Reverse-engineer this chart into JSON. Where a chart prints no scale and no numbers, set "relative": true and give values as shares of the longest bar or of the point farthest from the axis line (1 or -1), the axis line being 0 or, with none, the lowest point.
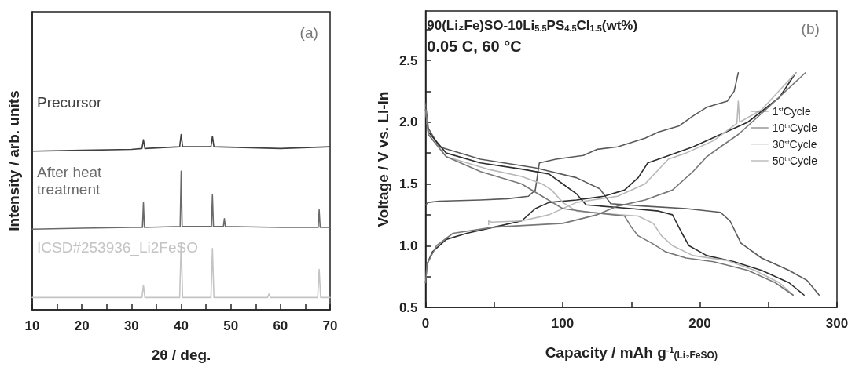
{
  "chart_data": [
    {
      "type": "line",
      "relative": true,
      "xlabel": "2θ / deg.",
      "ylabel": "Intensity / arb. units",
      "annotations": [
        "(a)"
      ],
      "xlim": [
        10,
        70
      ],
      "xticks": [
        10,
        {
          "value": 15,
          "label": null
        },
        20,
        {
          "value": 25,
          "label": null
        },
        30,
        {
          "value": 35,
          "label": null
        },
        40,
        {
          "value": 45,
          "label": null
        },
        50,
        {
          "value": 55,
          "label": null
        },
        60,
        {
          "value": 65,
          "label": null
        },
        70
      ],
      "tick_labels": "x",
      "grid": false,
      "legend": false,
      "marker": "none",
      "series": [
        {
          "name": "Precursor",
          "color": "#404040",
          "x": [
            10,
            20,
            30,
            32.1,
            32.4,
            32.7,
            39.7,
            40,
            40.3,
            46,
            46.3,
            46.6,
            60,
            70
          ],
          "values": [
            0.905,
            0.91,
            0.915,
            0.92,
            0.97,
            0.92,
            0.93,
            1.0,
            0.93,
            0.93,
            0.99,
            0.93,
            0.92,
            0.93
          ]
        },
        {
          "name": "After heat treatment",
          "color": "#6a6a6a",
          "x": [
            10,
            20,
            30,
            32.2,
            32.4,
            32.6,
            39.8,
            40,
            40.2,
            46.1,
            46.3,
            46.5,
            48.5,
            48.7,
            48.9,
            60,
            67.6,
            67.8,
            68,
            70
          ],
          "values": [
            0.46,
            0.465,
            0.47,
            0.47,
            0.61,
            0.47,
            0.475,
            0.79,
            0.475,
            0.475,
            0.655,
            0.475,
            0.475,
            0.52,
            0.475,
            0.47,
            0.47,
            0.57,
            0.47,
            0.47
          ]
        },
        {
          "name": "ICSD#253936_Li2FeSO",
          "color": "#c4c4c4",
          "x": [
            10,
            32.1,
            32.4,
            32.7,
            39.7,
            40,
            40.3,
            46,
            46.3,
            46.6,
            57.4,
            57.7,
            58,
            67.5,
            67.8,
            68.1,
            70
          ],
          "values": [
            0.07,
            0.07,
            0.14,
            0.07,
            0.07,
            0.38,
            0.07,
            0.07,
            0.35,
            0.07,
            0.07,
            0.09,
            0.07,
            0.07,
            0.23,
            0.07,
            0.07
          ]
        }
      ]
    },
    {
      "type": "line",
      "xlabel": "Capacity / mAh g$^{-1}$$_{(Li₂FeSO)}$",
      "ylabel": "Voltage / V vs. Li-In",
      "annotations": [
        "90(Li₂Fe)SO-10Li$_{5.5}$PS$_{4.5}$Cl$_{1.5}$(wt%)",
        "0.05 C, 60 °C",
        "(b)"
      ],
      "xlim": [
        0,
        300
      ],
      "xticks": [
        0,
        {
          "value": 50,
          "label": null
        },
        100,
        {
          "value": 150,
          "label": null
        },
        200,
        {
          "value": 250,
          "label": null
        },
        300
      ],
      "ylim": [
        0.5,
        2.9
      ],
      "yticks": [
        {
          "value": 0.5,
          "label": "0.5"
        },
        {
          "value": 0.75,
          "label": null
        },
        {
          "value": 1,
          "label": "1.0"
        },
        {
          "value": 1.25,
          "label": null
        },
        1.5,
        {
          "value": 1.75,
          "label": null
        },
        {
          "value": 2,
          "label": "2.0"
        },
        {
          "value": 2.25,
          "label": null
        },
        2.5,
        {
          "value": 2.75,
          "label": null
        }
      ],
      "grid": false,
      "legend": "right",
      "marker": "none",
      "series": [
        {
          "name": "1$^{st}$Cycle",
          "color": "#5a5a5a",
          "x": [
            0,
            2,
            10,
            40,
            80,
            110,
            127,
            135,
            160,
            190,
            215,
            222,
            230,
            245,
            265,
            278,
            287,
            null,
            0,
            2,
            10,
            40,
            60,
            75,
            80,
            82,
            83,
            95,
            115,
            125,
            140,
            160,
            170,
            185,
            195,
            205,
            220,
            225,
            228
          ],
          "values": [
            2.15,
            1.95,
            1.8,
            1.7,
            1.63,
            1.55,
            1.46,
            1.34,
            1.32,
            1.3,
            1.27,
            1.2,
            1.02,
            0.9,
            0.8,
            0.72,
            0.6,
            null,
            1.33,
            1.35,
            1.36,
            1.37,
            1.38,
            1.4,
            1.45,
            1.6,
            1.67,
            1.7,
            1.73,
            1.78,
            1.8,
            1.87,
            1.92,
            1.97,
            2.05,
            2.12,
            2.17,
            2.25,
            2.4
          ]
        },
        {
          "name": "10$^{th}$Cycle",
          "color": "#2e2e2e",
          "x": [
            0,
            2,
            15,
            40,
            70,
            90,
            100,
            110,
            117,
            150,
            170,
            180,
            187,
            192,
            205,
            225,
            245,
            265,
            276,
            null,
            0,
            1,
            5,
            15,
            30,
            50,
            70,
            80,
            90,
            110,
            130,
            145,
            155,
            162,
            175,
            195,
            215,
            235,
            258,
            270
          ],
          "values": [
            2.1,
            1.92,
            1.75,
            1.67,
            1.62,
            1.58,
            1.5,
            1.42,
            1.33,
            1.3,
            1.28,
            1.25,
            1.1,
            1.0,
            0.92,
            0.87,
            0.8,
            0.7,
            0.6,
            null,
            0.7,
            0.85,
            0.95,
            1.05,
            1.1,
            1.15,
            1.2,
            1.3,
            1.35,
            1.37,
            1.4,
            1.45,
            1.55,
            1.67,
            1.72,
            1.8,
            1.9,
            2.0,
            2.2,
            2.4
          ]
        },
        {
          "name": "30$^{st}$Cycle",
          "color": "#b8b8b8",
          "x": [
            0,
            2,
            15,
            45,
            70,
            85,
            92,
            100,
            110,
            130,
            155,
            166,
            172,
            180,
            195,
            220,
            240,
            258,
            268,
            null,
            46,
            46,
            48,
            70,
            90,
            110,
            140,
            160,
            177,
            190,
            210,
            227,
            228,
            229,
            245,
            270
          ],
          "values": [
            2.1,
            1.9,
            1.72,
            1.62,
            1.56,
            1.5,
            1.45,
            1.35,
            1.28,
            1.26,
            1.24,
            1.18,
            1.08,
            1.0,
            0.92,
            0.88,
            0.8,
            0.7,
            0.6,
            null,
            1.17,
            1.2,
            1.19,
            1.2,
            1.25,
            1.35,
            1.4,
            1.5,
            1.7,
            1.75,
            1.85,
            1.99,
            2.17,
            2.0,
            2.1,
            2.4
          ]
        },
        {
          "name": "50$^{th}$Cycle",
          "color": "#777777",
          "x": [
            0,
            2,
            15,
            40,
            70,
            85,
            100,
            120,
            145,
            150,
            155,
            165,
            175,
            190,
            210,
            235,
            255,
            268,
            null,
            0,
            1,
            8,
            20,
            50,
            100,
            125,
            140,
            160,
            180,
            195,
            205,
            215,
            228,
            248,
            277
          ],
          "values": [
            2.1,
            1.9,
            1.72,
            1.6,
            1.5,
            1.4,
            1.3,
            1.27,
            1.24,
            1.15,
            1.08,
            1.02,
            0.95,
            0.9,
            0.87,
            0.8,
            0.7,
            0.6,
            null,
            0.7,
            0.85,
            1.0,
            1.1,
            1.15,
            1.18,
            1.25,
            1.32,
            1.37,
            1.45,
            1.6,
            1.72,
            1.8,
            1.9,
            2.1,
            2.4
          ]
        }
      ]
    }
  ]
}
